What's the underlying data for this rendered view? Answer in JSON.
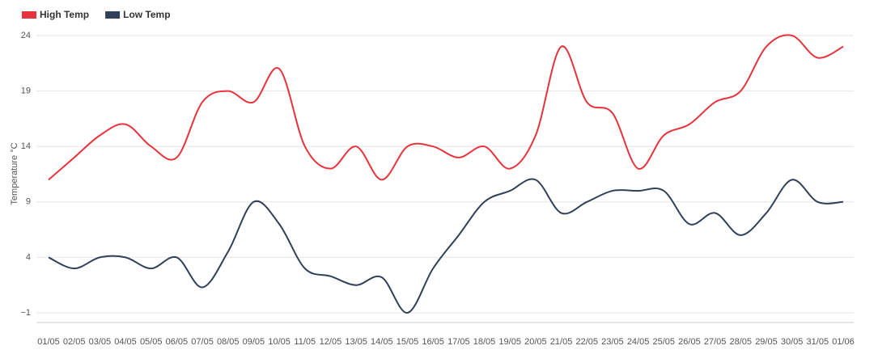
{
  "chart_data": {
    "type": "line",
    "y_label": "Temperature °C",
    "categories": [
      "01/05",
      "02/05",
      "03/05",
      "04/05",
      "05/05",
      "06/05",
      "07/05",
      "08/05",
      "09/05",
      "10/05",
      "11/05",
      "12/05",
      "13/05",
      "14/05",
      "15/05",
      "16/05",
      "17/05",
      "18/05",
      "19/05",
      "20/05",
      "21/05",
      "22/05",
      "23/05",
      "24/05",
      "25/05",
      "26/05",
      "27/05",
      "28/05",
      "29/05",
      "30/05",
      "31/05",
      "01/06"
    ],
    "series": [
      {
        "name": "High Temp",
        "color": "#e8323c",
        "values": [
          11,
          13,
          15,
          16,
          14,
          13,
          18,
          19,
          18,
          21,
          14,
          12,
          14,
          11,
          14,
          14,
          13,
          14,
          12,
          15,
          23,
          18,
          17,
          12,
          15,
          16,
          18,
          19,
          23,
          24,
          22,
          23
        ]
      },
      {
        "name": "Low Temp",
        "color": "#2f4058",
        "values": [
          4,
          3,
          4,
          4,
          3,
          4,
          1.3,
          4.5,
          9,
          7,
          3,
          2.3,
          1.5,
          2.2,
          -1,
          3,
          6,
          9,
          10,
          11,
          8,
          9,
          10,
          10,
          10,
          7,
          8,
          6,
          8,
          11,
          9,
          9
        ]
      }
    ],
    "ylim": [
      -1,
      24
    ],
    "yticks": [
      {
        "value": -1,
        "label": "−1"
      },
      4,
      9,
      14,
      19,
      24
    ],
    "grid": true,
    "legend": "top-left"
  }
}
